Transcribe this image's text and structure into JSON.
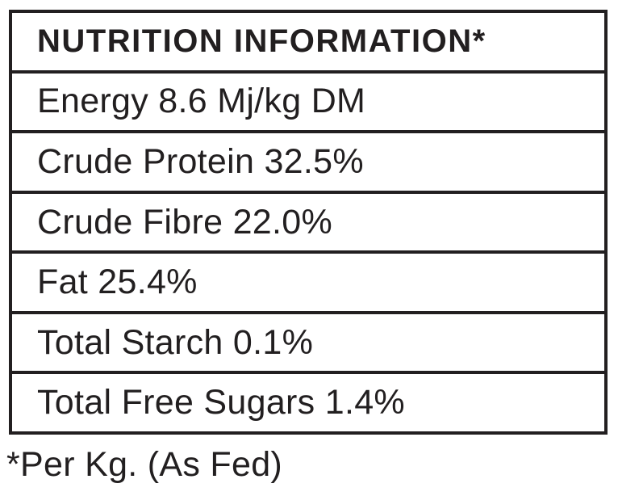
{
  "label": {
    "title": "NUTRITION INFORMATION*",
    "rows": [
      "Energy 8.6 Mj/kg DM",
      "Crude Protein 32.5%",
      "Crude Fibre 22.0%",
      "Fat 25.4%",
      "Total Starch 0.1%",
      "Total Free Sugars 1.4%"
    ],
    "footnote": "*Per Kg. (As Fed)"
  },
  "colors": {
    "text": "#221F20",
    "border": "#221F20",
    "background": "#FFFFFF"
  }
}
